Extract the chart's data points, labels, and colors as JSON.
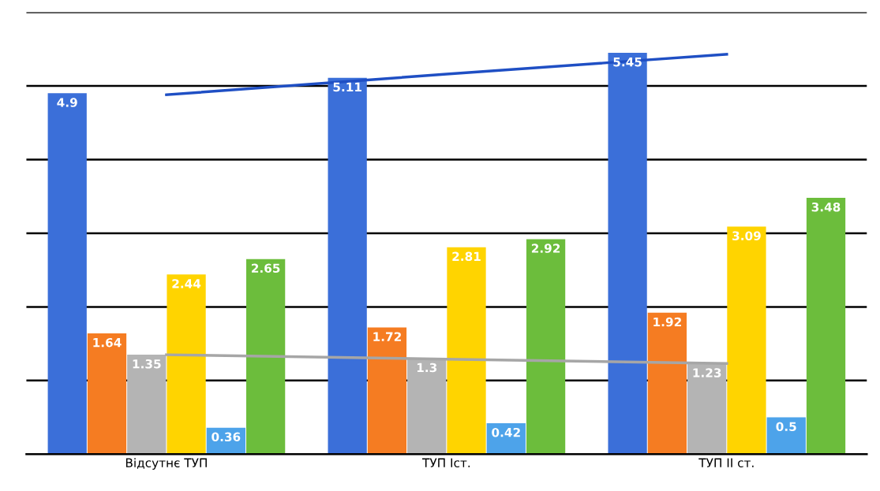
{
  "chart_data": {
    "type": "bar",
    "categories": [
      "Відсутнє ТУП",
      "ТУП Іст.",
      "ТУП ІІ ст."
    ],
    "series": [
      {
        "color": "#3b6fd9",
        "values": [
          4.9,
          5.11,
          5.45
        ],
        "value_labels": [
          "4.9",
          "5.11",
          "5.45"
        ]
      },
      {
        "color": "#f57c22",
        "values": [
          1.64,
          1.72,
          1.92
        ],
        "value_labels": [
          "1.64",
          "1.72",
          "1.92"
        ]
      },
      {
        "color": "#b4b4b4",
        "values": [
          1.35,
          1.3,
          1.23
        ],
        "value_labels": [
          "1.35",
          "1.3",
          "1.23"
        ]
      },
      {
        "color": "#ffd400",
        "values": [
          2.44,
          2.81,
          3.09
        ],
        "value_labels": [
          "2.44",
          "2.81",
          "3.09"
        ]
      },
      {
        "color": "#4da3ea",
        "values": [
          0.36,
          0.42,
          0.5
        ],
        "value_labels": [
          "0.36",
          "0.42",
          "0.5"
        ]
      },
      {
        "color": "#6cbd3c",
        "values": [
          2.65,
          2.92,
          3.48
        ],
        "value_labels": [
          "2.65",
          "2.92",
          "3.48"
        ]
      },
      {
        "type": "line",
        "color": "#1f4fc4",
        "values": [
          4.88,
          5.16,
          5.43
        ]
      },
      {
        "type": "line",
        "color": "#a6a6a6",
        "values": [
          1.35,
          1.29,
          1.23
        ]
      }
    ],
    "ylim": [
      0,
      6
    ],
    "yticks": [
      {
        "value": 0,
        "label": null
      },
      {
        "value": 1,
        "label": null
      },
      {
        "value": 2,
        "label": null
      },
      {
        "value": 3,
        "label": null
      },
      {
        "value": 4,
        "label": null
      },
      {
        "value": 5,
        "label": null
      },
      {
        "value": 6,
        "label": null
      }
    ],
    "grid": "y",
    "tick_labels": "x"
  }
}
